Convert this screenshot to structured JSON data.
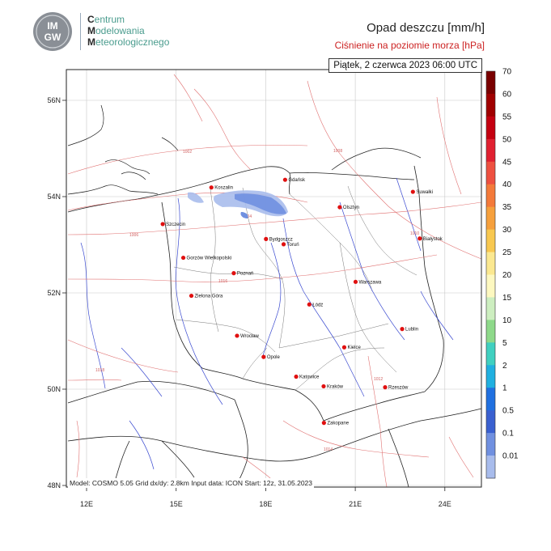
{
  "header": {
    "logo_text": "IMGW",
    "org_line1_cap": "C",
    "org_line1_rest": "entrum",
    "org_line2_cap": "M",
    "org_line2_rest": "odelowania",
    "org_line3_cap": "M",
    "org_line3_rest": "eteorologicznego",
    "title": "Opad deszczu [mm/h]",
    "subtitle": "Ciśnienie na poziomie morza [hPa]",
    "valid_time": "Piątek, 2 czerwca 2023 06:00 UTC"
  },
  "footer": {
    "info": "Model: COSMO 5.05  Grid dx/dy: 2.8km  Input data: ICON  Start: 12z, 31.05.2023"
  },
  "axes": {
    "lon_ticks": [
      "12E",
      "15E",
      "18E",
      "21E",
      "24E"
    ],
    "lat_ticks": [
      "56N",
      "54N",
      "52N",
      "50N",
      "48N"
    ]
  },
  "cities": [
    {
      "name": "Gdańsk",
      "lon": 18.65,
      "lat": 54.35
    },
    {
      "name": "Koszalin",
      "lon": 16.18,
      "lat": 54.19
    },
    {
      "name": "Suwałki",
      "lon": 22.93,
      "lat": 54.1
    },
    {
      "name": "Olsztyn",
      "lon": 20.48,
      "lat": 53.78
    },
    {
      "name": "Szczecin",
      "lon": 14.55,
      "lat": 53.43
    },
    {
      "name": "Białystok",
      "lon": 23.16,
      "lat": 53.13
    },
    {
      "name": "Bydgoszcz",
      "lon": 18.01,
      "lat": 53.12
    },
    {
      "name": "Toruń",
      "lon": 18.6,
      "lat": 53.01
    },
    {
      "name": "Gorzów Wielkopolski",
      "lon": 15.24,
      "lat": 52.73
    },
    {
      "name": "Poznań",
      "lon": 16.93,
      "lat": 52.41
    },
    {
      "name": "Warszawa",
      "lon": 21.01,
      "lat": 52.23
    },
    {
      "name": "Zielona Góra",
      "lon": 15.51,
      "lat": 51.94
    },
    {
      "name": "Łódź",
      "lon": 19.46,
      "lat": 51.76
    },
    {
      "name": "Lublin",
      "lon": 22.57,
      "lat": 51.25
    },
    {
      "name": "Wrocław",
      "lon": 17.04,
      "lat": 51.11
    },
    {
      "name": "Kielce",
      "lon": 20.63,
      "lat": 50.87
    },
    {
      "name": "Opole",
      "lon": 17.93,
      "lat": 50.67
    },
    {
      "name": "Katowice",
      "lon": 19.02,
      "lat": 50.26
    },
    {
      "name": "Rzeszów",
      "lon": 22.0,
      "lat": 50.04
    },
    {
      "name": "Kraków",
      "lon": 19.94,
      "lat": 50.06
    },
    {
      "name": "Zakopane",
      "lon": 19.95,
      "lat": 49.3
    }
  ],
  "isobar_labels": [
    "1002",
    "1004",
    "1006",
    "1008",
    "1010",
    "1012",
    "1014",
    "1016",
    "1018"
  ],
  "colorbar": {
    "labels": [
      "70",
      "60",
      "55",
      "50",
      "45",
      "40",
      "35",
      "30",
      "25",
      "20",
      "15",
      "10",
      "5",
      "2",
      "1",
      "0.5",
      "0.1",
      "0.01"
    ],
    "colors": [
      "#7a0000",
      "#a00000",
      "#c40010",
      "#e02030",
      "#ee5040",
      "#f47a3a",
      "#f6a03c",
      "#f8c850",
      "#fbe890",
      "#fdf8c0",
      "#cdeec0",
      "#8ed98a",
      "#40d0c0",
      "#20b0e0",
      "#2070e0",
      "#3a60d0",
      "#7090e0",
      "#a8bcec"
    ]
  }
}
